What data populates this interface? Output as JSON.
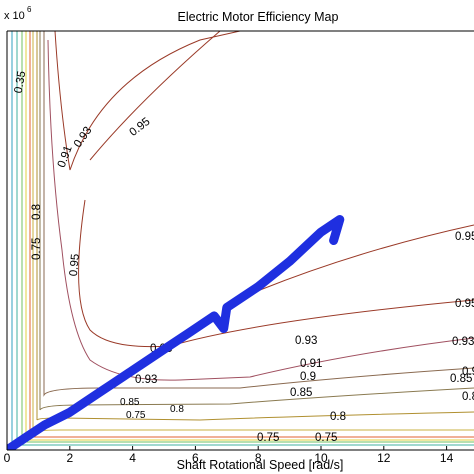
{
  "chart_data": {
    "type": "line",
    "title": "Electric Motor Efficiency Map",
    "xlabel": "Shaft Rotational Speed [rad/s]",
    "ylabel": "",
    "y_multiplier_label": "x 10",
    "y_multiplier_exponent": "6",
    "xlim": [
      0,
      15
    ],
    "x_ticks": [
      0,
      2,
      4,
      6,
      8,
      10,
      12,
      14
    ],
    "grid": false,
    "contours": [
      {
        "name": "0.95",
        "color": "#9a3a28",
        "labels": [
          "0.95",
          "0.95",
          "0.95",
          "0.95",
          "0.95",
          "0.95"
        ]
      },
      {
        "name": "0.93",
        "color": "#a05060",
        "labels": [
          "0.93",
          "0.93",
          "0.93",
          "0.93"
        ]
      },
      {
        "name": "0.91",
        "color": "#8a6a50",
        "labels": [
          "0.91",
          "0.91"
        ]
      },
      {
        "name": "0.9",
        "color": "#8a7a50",
        "labels": [
          "0.9",
          "0.9"
        ]
      },
      {
        "name": "0.85",
        "color": "#b09030",
        "labels": [
          "0.85",
          "0.85",
          "0.85"
        ]
      },
      {
        "name": "0.8",
        "color": "#c8b040",
        "labels": [
          "0.8",
          "0.8",
          "0.8",
          "0.8"
        ]
      },
      {
        "name": "0.75",
        "color": "#e06030",
        "labels": [
          "0.75",
          "0.75",
          "0.75",
          "0.75"
        ]
      },
      {
        "name": "0.35",
        "color": "#30a0c0",
        "labels": [
          "0.35"
        ]
      }
    ],
    "series": [
      {
        "color": "#1f2fe0",
        "x": [
          0.0,
          0.6,
          1.2,
          2.0,
          3.0,
          4.0,
          5.0,
          5.8,
          6.6,
          6.9,
          7.0,
          8.0,
          9.0,
          10.0,
          10.6,
          10.4
        ],
        "y_fraction_of_axis": [
          0.0,
          0.03,
          0.06,
          0.09,
          0.14,
          0.19,
          0.24,
          0.28,
          0.32,
          0.29,
          0.34,
          0.39,
          0.45,
          0.52,
          0.55,
          0.5
        ]
      }
    ]
  }
}
